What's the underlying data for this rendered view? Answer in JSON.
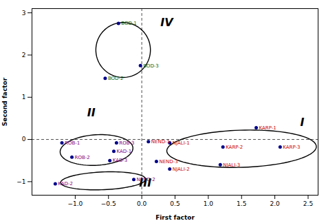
{
  "chart_data": {
    "type": "scatter",
    "xlabel": "First factor",
    "ylabel": "Second factor",
    "labels": [
      "BOD-1",
      "BOD-2",
      "BOD-3",
      "ROB-1",
      "ROB-2",
      "ROB-3",
      "KAD-1",
      "KAD-2",
      "KAD-3",
      "NEND-1",
      "NEND-2",
      "NEND-3",
      "NJALI-1",
      "NJALI-2",
      "NJALI-3",
      "KARP-1",
      "KARP-2",
      "KARP-3"
    ],
    "x": [
      -0.35,
      -0.55,
      -0.02,
      -1.2,
      -1.05,
      -0.38,
      -0.42,
      -1.3,
      -0.48,
      0.1,
      -0.12,
      0.22,
      0.42,
      0.42,
      1.18,
      1.72,
      1.22,
      2.08
    ],
    "values": [
      2.75,
      1.45,
      1.75,
      -0.08,
      -0.42,
      -0.08,
      -0.28,
      -1.05,
      -0.5,
      -0.05,
      -0.95,
      -0.52,
      -0.08,
      -0.7,
      -0.6,
      0.28,
      -0.18,
      -0.18
    ],
    "label_colors": [
      "#006400",
      "#006400",
      "#006400",
      "#800080",
      "#800080",
      "#800080",
      "#800080",
      "#800080",
      "#800080",
      "#cc0000",
      "#800080",
      "#cc0000",
      "#cc0000",
      "#cc0000",
      "#cc0000",
      "#cc0000",
      "#cc0000",
      "#cc0000"
    ],
    "color": "#00008b",
    "clusters": [
      {
        "label": "I",
        "cx": 1.5,
        "cy": -0.22,
        "width": 2.25,
        "height": 0.88,
        "angle": 3,
        "label_x": 2.38,
        "label_y": 0.32
      },
      {
        "label": "II",
        "cx": -0.68,
        "cy": -0.25,
        "width": 1.1,
        "height": 0.72,
        "angle": 8,
        "label_x": -0.82,
        "label_y": 0.55
      },
      {
        "label": "III",
        "cx": -0.58,
        "cy": -0.98,
        "width": 1.28,
        "height": 0.42,
        "angle": 4,
        "label_x": -0.04,
        "label_y": -1.12
      },
      {
        "label": "IV",
        "cx": -0.28,
        "cy": 2.12,
        "width": 0.82,
        "height": 1.3,
        "angle": 0,
        "label_x": 0.28,
        "label_y": 2.68
      }
    ],
    "hlines": [
      0
    ],
    "vlines": [
      0
    ],
    "xlim": [
      -1.65,
      2.65
    ],
    "ylim": [
      -1.32,
      3.1
    ],
    "xticks": [
      {
        "value": -1.0,
        "label": "−1.0"
      },
      {
        "value": -0.5,
        "label": "−0.5"
      },
      {
        "value": 0.0,
        "label": "0.0"
      },
      0.5,
      {
        "value": 1.0,
        "label": "1.0"
      },
      1.5,
      {
        "value": 2.0,
        "label": "2.0"
      },
      2.5
    ],
    "yticks": [
      {
        "value": -1,
        "label": "−1"
      },
      0,
      1,
      2,
      3
    ],
    "grid": false
  }
}
